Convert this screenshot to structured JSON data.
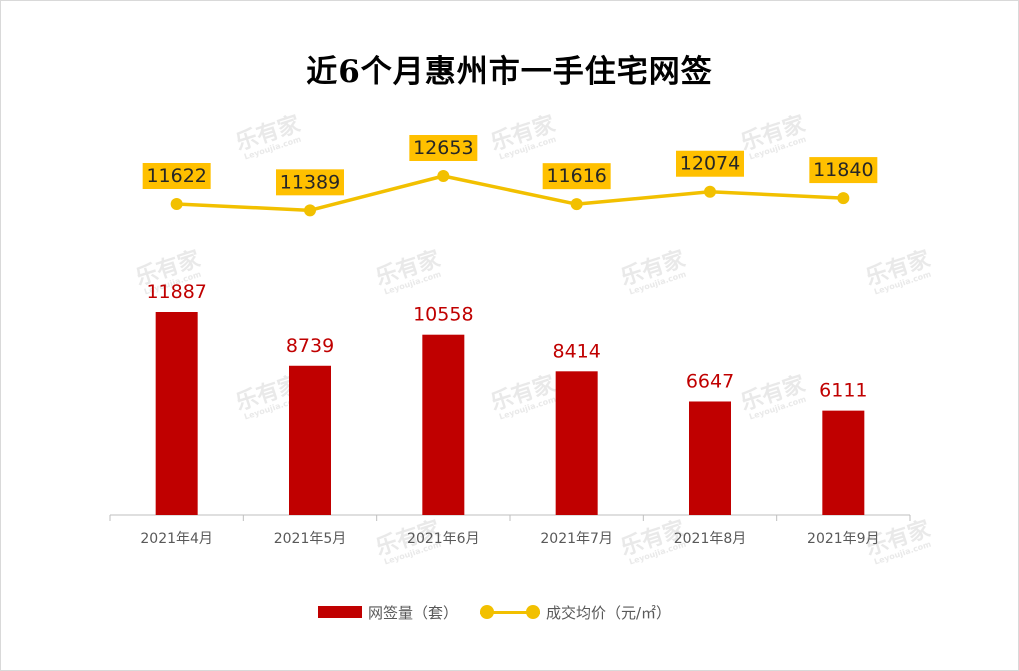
{
  "colors": {
    "bar": "#c00000",
    "line": "#f2c000",
    "label_box": "#ffc000",
    "bar_label": "#c00000",
    "axis_text": "#595959"
  },
  "chart_data": {
    "type": "bar+line",
    "title": "近6个月惠州市一手住宅网签",
    "categories": [
      "2021年4月",
      "2021年5月",
      "2021年6月",
      "2021年7月",
      "2021年8月",
      "2021年9月"
    ],
    "series": [
      {
        "name": "网签量（套）",
        "type": "bar",
        "values": [
          11887,
          8739,
          10558,
          8414,
          6647,
          6111
        ]
      },
      {
        "name": "成交均价（元/㎡）",
        "type": "line",
        "values": [
          11622,
          11389,
          12653,
          11616,
          12074,
          11840
        ]
      }
    ],
    "grid": false,
    "legend_position": "bottom"
  },
  "watermark": {
    "text": "乐有家",
    "subtext": "Leyoujia.com"
  }
}
